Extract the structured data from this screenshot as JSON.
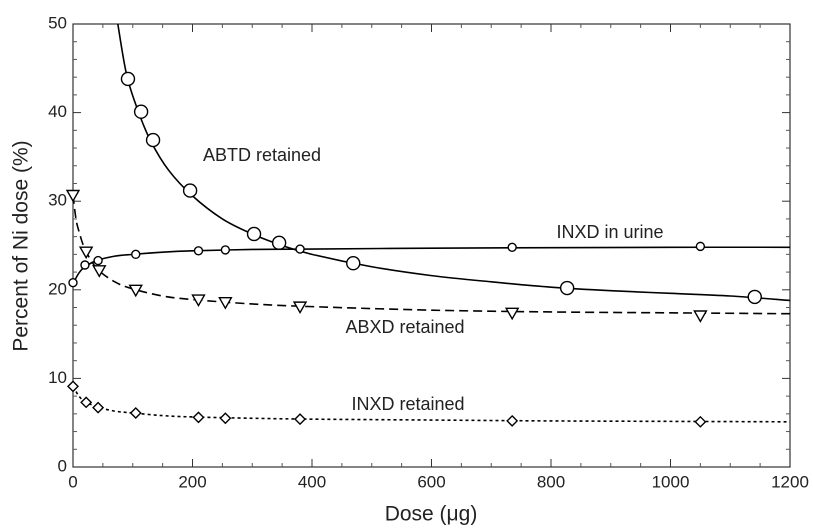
{
  "chart_data": {
    "type": "line",
    "xlabel": "Dose (μg)",
    "ylabel": "Percent of Ni dose (%)",
    "xlim": [
      0,
      1200
    ],
    "ylim": [
      0,
      50
    ],
    "xticks": [
      0,
      200,
      400,
      600,
      800,
      1000,
      1200
    ],
    "yticks": [
      0,
      10,
      20,
      30,
      40,
      50
    ],
    "grid": false,
    "series": [
      {
        "name": "ABTD retained",
        "color": "#000000",
        "marker": "circle",
        "line": "solid",
        "x": [
          92,
          114,
          134,
          196,
          303,
          345,
          469,
          827,
          1141
        ],
        "values": [
          43.8,
          40.1,
          36.9,
          31.2,
          26.3,
          25.3,
          23.0,
          20.2,
          19.2
        ],
        "fit_x": [
          75,
          90,
          110,
          130,
          160,
          200,
          250,
          300,
          350,
          400,
          500,
          600,
          700,
          800,
          900,
          1000,
          1100,
          1200
        ],
        "fit_values": [
          50,
          44.2,
          40.0,
          36.8,
          33.5,
          30.6,
          28.0,
          26.3,
          25.0,
          24.0,
          22.6,
          21.6,
          20.9,
          20.3,
          19.9,
          19.6,
          19.3,
          18.8
        ]
      },
      {
        "name": "INXD in urine",
        "color": "#000000",
        "marker": "circle",
        "line": "solid",
        "x": [
          0,
          20,
          42,
          105,
          210,
          255,
          380,
          735,
          1050
        ],
        "values": [
          20.8,
          22.8,
          23.3,
          24.0,
          24.4,
          24.5,
          24.6,
          24.8,
          24.9
        ],
        "fit_x": [
          0,
          10,
          20,
          40,
          70,
          100,
          150,
          200,
          300,
          400,
          600,
          800,
          1000,
          1200
        ],
        "fit_values": [
          20.7,
          21.9,
          22.6,
          23.3,
          23.8,
          24.0,
          24.25,
          24.4,
          24.55,
          24.6,
          24.7,
          24.75,
          24.8,
          24.8
        ]
      },
      {
        "name": "ABXD retained",
        "color": "#000000",
        "marker": "triangle-down",
        "line": "dashed",
        "x": [
          0,
          22,
          44,
          105,
          210,
          255,
          380,
          735,
          1050
        ],
        "values": [
          30.7,
          24.3,
          22.2,
          20.0,
          18.9,
          18.6,
          18.1,
          17.4,
          17.1
        ],
        "fit_x": [
          0,
          5,
          10,
          20,
          40,
          70,
          100,
          150,
          200,
          300,
          400,
          600,
          800,
          1000,
          1200
        ],
        "fit_values": [
          30.7,
          28.0,
          26.6,
          24.6,
          22.4,
          20.9,
          20.1,
          19.3,
          18.9,
          18.4,
          18.1,
          17.7,
          17.5,
          17.4,
          17.3
        ]
      },
      {
        "name": "INXD retained",
        "color": "#000000",
        "marker": "diamond",
        "line": "dotted",
        "x": [
          0,
          22,
          42,
          105,
          210,
          255,
          380,
          735,
          1050
        ],
        "values": [
          9.1,
          7.3,
          6.7,
          6.1,
          5.6,
          5.5,
          5.4,
          5.2,
          5.1
        ],
        "fit_x": [
          0,
          10,
          20,
          40,
          70,
          100,
          150,
          200,
          300,
          400,
          600,
          800,
          1000,
          1200
        ],
        "fit_values": [
          9.1,
          8.0,
          7.4,
          6.8,
          6.3,
          6.1,
          5.8,
          5.65,
          5.5,
          5.4,
          5.3,
          5.2,
          5.15,
          5.1
        ]
      }
    ]
  }
}
